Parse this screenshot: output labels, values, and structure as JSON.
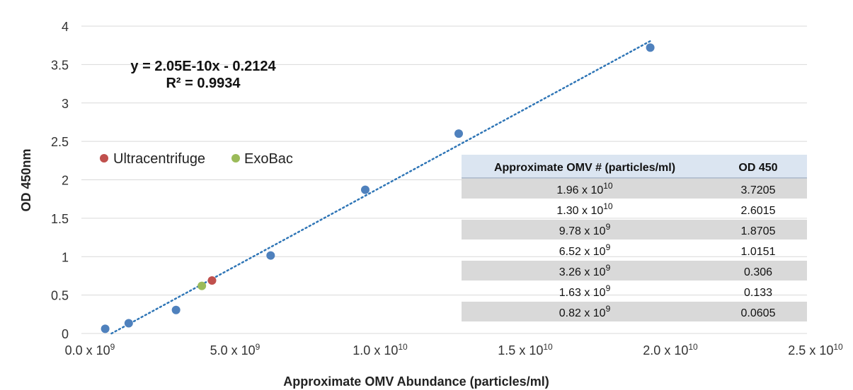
{
  "chart_data": {
    "type": "scatter",
    "xlabel": "Approximate OMV Abundance (particles/ml)",
    "ylabel": "OD 450nm",
    "xlim": [
      0,
      25000000000
    ],
    "ylim": [
      0,
      4
    ],
    "y_ticks": [
      "0",
      "0.5",
      "1",
      "1.5",
      "2",
      "2.5",
      "3",
      "3.5",
      "4"
    ],
    "x_ticks": [
      {
        "value": 0,
        "mant": "0.0 x 10",
        "exp": "9"
      },
      {
        "value": 5000000000,
        "mant": "5.0 x 10",
        "exp": "9"
      },
      {
        "value": 10000000000,
        "mant": "1.0 x 10",
        "exp": "10"
      },
      {
        "value": 15000000000,
        "mant": "1.5 x 10",
        "exp": "10"
      },
      {
        "value": 20000000000,
        "mant": "2.0 x 10",
        "exp": "10"
      },
      {
        "value": 25000000000,
        "mant": "2.5 x 10",
        "exp": "10"
      }
    ],
    "grid": "horizontal",
    "series": [
      {
        "color": "#4f81bd",
        "points": [
          {
            "x": 820000000,
            "y": 0.0605
          },
          {
            "x": 1630000000,
            "y": 0.133
          },
          {
            "x": 3260000000,
            "y": 0.306
          },
          {
            "x": 6520000000,
            "y": 1.0151
          },
          {
            "x": 9780000000,
            "y": 1.8705
          },
          {
            "x": 13000000000,
            "y": 2.6015
          },
          {
            "x": 19600000000,
            "y": 3.7205
          }
        ]
      },
      {
        "name": "Ultracentrifuge",
        "color": "#c0504d",
        "points": [
          {
            "x": 4500000000,
            "y": 0.69
          }
        ]
      },
      {
        "name": "ExoBac",
        "color": "#9bbb59",
        "points": [
          {
            "x": 4150000000,
            "y": 0.62
          }
        ]
      }
    ],
    "trendline": {
      "slope": 2.05e-10,
      "intercept": -0.2124,
      "x_start": 1036000000,
      "x_end": 19600000000,
      "color": "#2e75b6",
      "equation": "y = 2.05E-10x - 0.2124",
      "r2": "R² = 0.9934"
    },
    "legend": {
      "placement": "upper-left",
      "items": [
        {
          "label": "Ultracentrifuge",
          "color": "#c0504d"
        },
        {
          "label": "ExoBac",
          "color": "#9bbb59"
        }
      ]
    },
    "table": {
      "headers": [
        "Approximate OMV # (particles/ml)",
        "OD 450"
      ],
      "rows": [
        {
          "mant": "1.96 x 10",
          "exp": "10",
          "od": "3.7205"
        },
        {
          "mant": "1.30 x 10",
          "exp": "10",
          "od": "2.6015"
        },
        {
          "mant": "9.78 x 10",
          "exp": "9",
          "od": "1.8705"
        },
        {
          "mant": "6.52 x 10",
          "exp": "9",
          "od": "1.0151"
        },
        {
          "mant": "3.26 x 10",
          "exp": "9",
          "od": "0.306"
        },
        {
          "mant": "1.63 x 10",
          "exp": "9",
          "od": "0.133"
        },
        {
          "mant": "0.82 x 10",
          "exp": "9",
          "od": "0.0605"
        }
      ],
      "header_bg": "#dbe5f1",
      "stripe_bg": "#d9d9d9"
    }
  }
}
